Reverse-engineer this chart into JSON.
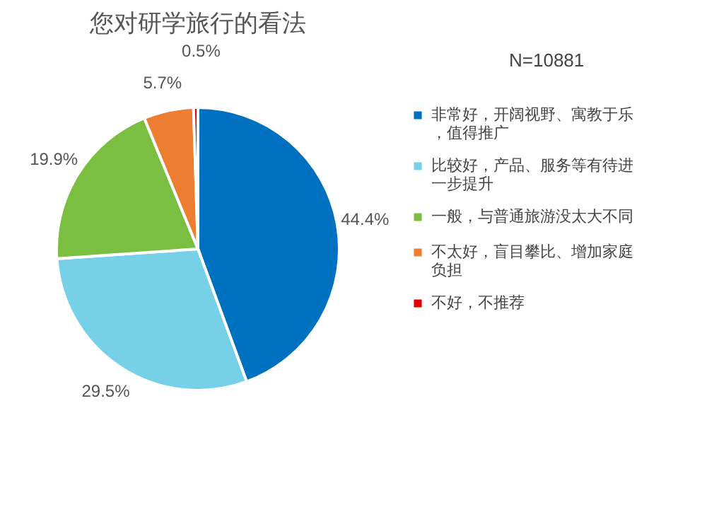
{
  "chart_data": {
    "type": "pie",
    "title": "您对研学旅行的看法",
    "annotations": [
      "N=10881"
    ],
    "categories": [
      "非常好，开阔视野、寓教于乐，值得推广",
      "比较好，产品、服务等有待进一步提升",
      "一般，与普通旅游没太大不同",
      "不太好，盲目攀比、增加家庭负担",
      "不好，不推荐"
    ],
    "values": [
      44.4,
      29.5,
      19.9,
      5.7,
      0.5
    ],
    "value_labels": [
      "44.4%",
      "29.5%",
      "19.9%",
      "5.7%",
      "0.5%"
    ],
    "colors": [
      "#0070c0",
      "#75d0e8",
      "#7abf42",
      "#ed7d31",
      "#e00000"
    ],
    "legend": "right"
  }
}
